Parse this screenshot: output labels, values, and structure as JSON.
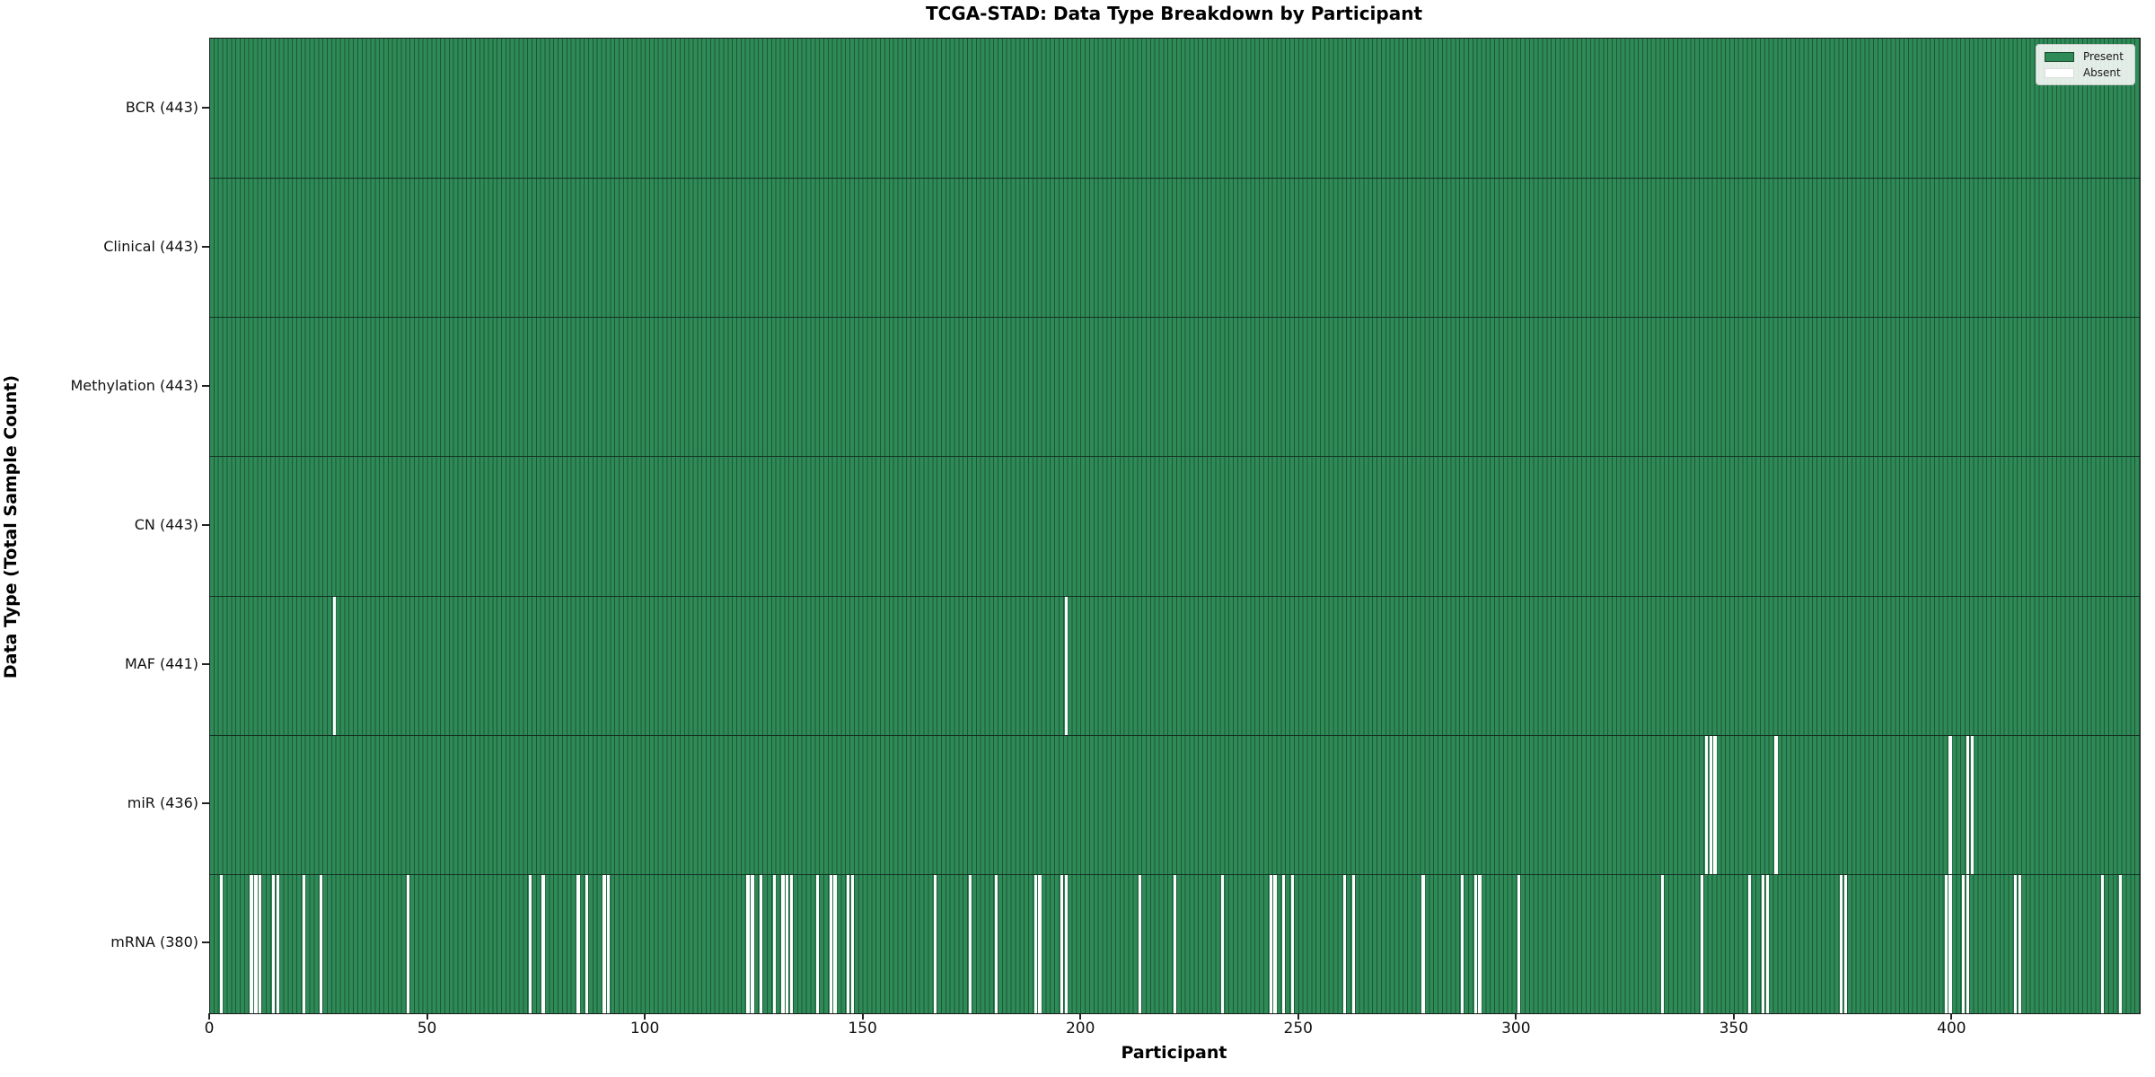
{
  "chart_data": {
    "type": "heatmap",
    "title": "TCGA-STAD: Data Type Breakdown by Participant",
    "xlabel": "Participant",
    "ylabel": "Data Type (Total Sample Count)",
    "x_ticks": [
      0,
      50,
      100,
      150,
      200,
      250,
      300,
      350,
      400
    ],
    "x_range": [
      0,
      443
    ],
    "total_participants": 443,
    "grid": false,
    "legend": {
      "position": "upper-right",
      "entries": [
        {
          "label": "Present",
          "color": "#2e8b57"
        },
        {
          "label": "Absent",
          "color": "#ffffff"
        }
      ]
    },
    "colors": {
      "present": "#2e8b57",
      "absent": "#ffffff",
      "bar_edge": "#1f5537",
      "row_divider": "#143022",
      "axis": "#1a1a1a"
    },
    "rows": [
      {
        "label": "BCR (443)",
        "data_type": "BCR",
        "present_count": 443,
        "absent_count": 0,
        "absent_participants": []
      },
      {
        "label": "Clinical (443)",
        "data_type": "Clinical",
        "present_count": 443,
        "absent_count": 0,
        "absent_participants": []
      },
      {
        "label": "Methylation (443)",
        "data_type": "Methylation",
        "present_count": 443,
        "absent_count": 0,
        "absent_participants": []
      },
      {
        "label": "CN (443)",
        "data_type": "CN",
        "present_count": 443,
        "absent_count": 0,
        "absent_participants": []
      },
      {
        "label": "MAF (441)",
        "data_type": "MAF",
        "present_count": 441,
        "absent_count": 2,
        "absent_participants": [
          28,
          196
        ]
      },
      {
        "label": "miR (436)",
        "data_type": "miR",
        "present_count": 436,
        "absent_count": 7,
        "absent_participants": [
          343,
          344,
          345,
          359,
          399,
          403,
          404
        ]
      },
      {
        "label": "mRNA (380)",
        "data_type": "mRNA",
        "present_count": 380,
        "absent_count": 63,
        "absent_participants": [
          2,
          9,
          10,
          11,
          14,
          15,
          21,
          25,
          45,
          73,
          76,
          84,
          86,
          90,
          91,
          123,
          124,
          126,
          129,
          131,
          132,
          133,
          139,
          142,
          143,
          146,
          147,
          166,
          174,
          180,
          189,
          190,
          195,
          196,
          213,
          221,
          232,
          243,
          244,
          246,
          248,
          260,
          262,
          278,
          287,
          290,
          291,
          300,
          333,
          342,
          353,
          356,
          357,
          374,
          375,
          398,
          399,
          402,
          403,
          414,
          415,
          434,
          438
        ]
      }
    ]
  }
}
